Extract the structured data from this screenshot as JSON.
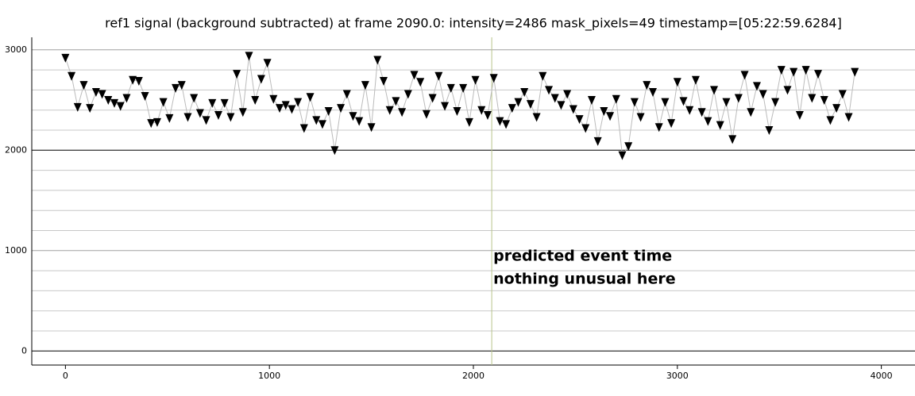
{
  "chart_data": {
    "type": "scatter",
    "title": "ref1 signal (background subtracted) at frame 2090.0: intensity=2486 mask_pixels=49 timestamp=[05:22:59.6284]",
    "xlim": [
      -165,
      4165
    ],
    "ylim": [
      -140,
      3125
    ],
    "xticks": [
      0,
      1000,
      2000,
      3000,
      4000
    ],
    "yticks": [
      0,
      1000,
      2000,
      3000
    ],
    "yticks_minor": [
      200,
      400,
      600,
      800,
      1200,
      1400,
      1600,
      1800,
      2200,
      2400,
      2600,
      2800
    ],
    "reference_lines": [
      0,
      2000
    ],
    "grid": true,
    "marker_color": "#000000",
    "line_color": "#bbbbbb",
    "event_x": 2090,
    "event_color": "#b8c48c",
    "annotations": [
      "predicted event time",
      "nothing unusual here"
    ],
    "x": [
      0,
      30,
      60,
      90,
      120,
      150,
      180,
      210,
      240,
      270,
      300,
      330,
      360,
      390,
      420,
      450,
      480,
      510,
      540,
      570,
      600,
      630,
      660,
      690,
      720,
      750,
      780,
      810,
      840,
      870,
      900,
      930,
      960,
      990,
      1020,
      1050,
      1080,
      1110,
      1140,
      1170,
      1200,
      1230,
      1260,
      1290,
      1320,
      1350,
      1380,
      1410,
      1440,
      1470,
      1500,
      1530,
      1560,
      1590,
      1620,
      1650,
      1680,
      1710,
      1740,
      1770,
      1800,
      1830,
      1860,
      1890,
      1920,
      1950,
      1980,
      2010,
      2040,
      2070,
      2100,
      2130,
      2160,
      2190,
      2220,
      2250,
      2280,
      2310,
      2340,
      2370,
      2400,
      2430,
      2460,
      2490,
      2520,
      2550,
      2580,
      2610,
      2640,
      2670,
      2700,
      2730,
      2760,
      2790,
      2820,
      2850,
      2880,
      2910,
      2940,
      2970,
      3000,
      3030,
      3060,
      3090,
      3120,
      3150,
      3180,
      3210,
      3240,
      3270,
      3300,
      3330,
      3360,
      3390,
      3420,
      3450,
      3480,
      3510,
      3540,
      3570,
      3600,
      3630,
      3660,
      3690,
      3720,
      3750,
      3780,
      3810,
      3840,
      3870
    ],
    "values": [
      2920,
      2740,
      2430,
      2650,
      2420,
      2580,
      2560,
      2500,
      2470,
      2440,
      2520,
      2700,
      2690,
      2540,
      2270,
      2280,
      2480,
      2320,
      2620,
      2650,
      2330,
      2520,
      2370,
      2300,
      2470,
      2350,
      2470,
      2330,
      2760,
      2380,
      2940,
      2500,
      2710,
      2870,
      2510,
      2420,
      2450,
      2410,
      2480,
      2220,
      2530,
      2300,
      2260,
      2390,
      2000,
      2420,
      2560,
      2340,
      2290,
      2650,
      2230,
      2900,
      2690,
      2400,
      2490,
      2380,
      2560,
      2750,
      2680,
      2360,
      2520,
      2740,
      2440,
      2620,
      2390,
      2620,
      2280,
      2700,
      2400,
      2350,
      2720,
      2290,
      2260,
      2420,
      2480,
      2580,
      2460,
      2330,
      2740,
      2600,
      2520,
      2450,
      2560,
      2410,
      2310,
      2220,
      2500,
      2090,
      2390,
      2340,
      2510,
      1950,
      2040,
      2480,
      2330,
      2650,
      2580,
      2230,
      2480,
      2270,
      2680,
      2490,
      2400,
      2700,
      2380,
      2290,
      2600,
      2250,
      2480,
      2110,
      2520,
      2750,
      2380,
      2640,
      2560,
      2200,
      2480,
      2800,
      2600,
      2780,
      2350,
      2800,
      2520,
      2760,
      2500,
      2300,
      2420,
      2560,
      2330,
      2780
    ]
  }
}
